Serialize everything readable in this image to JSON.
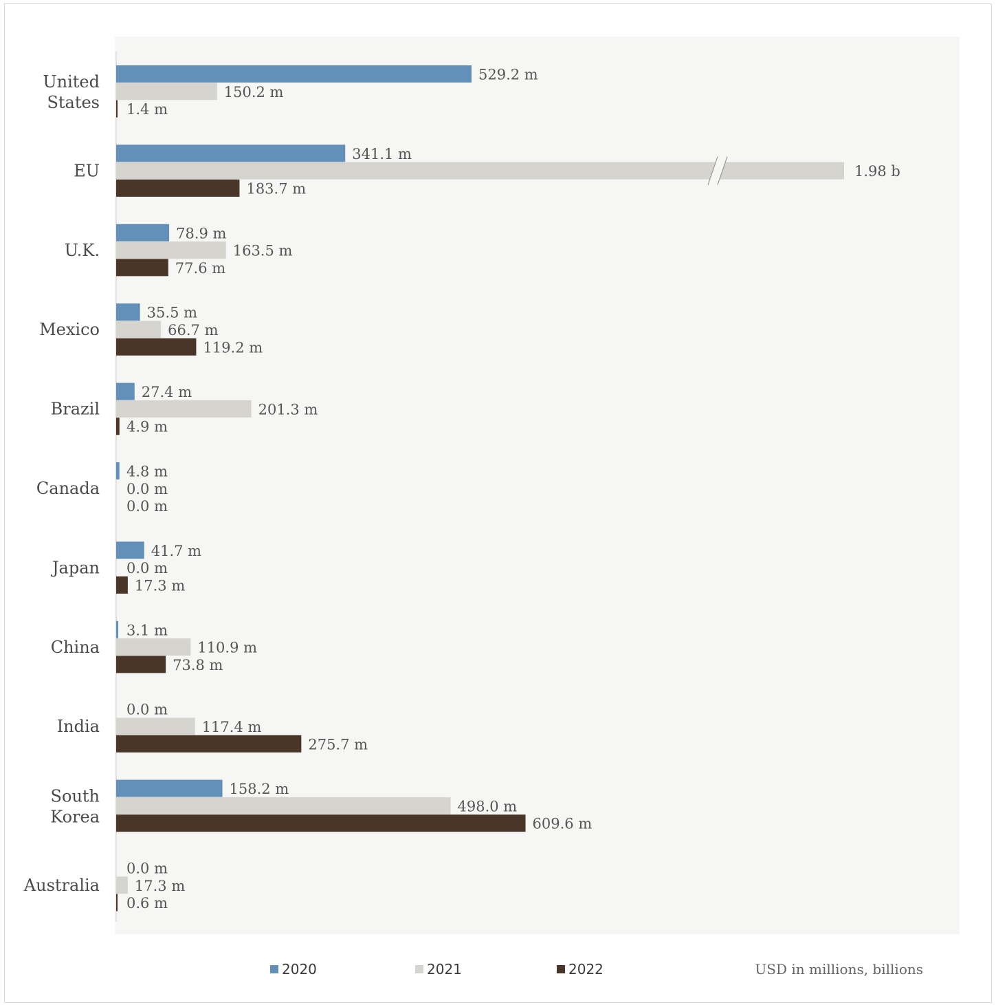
{
  "chart_data": {
    "type": "bar",
    "orientation": "horizontal",
    "categories": [
      "United States",
      "EU",
      "U.K.",
      "Mexico",
      "Brazil",
      "Canada",
      "Japan",
      "China",
      "India",
      "South Korea",
      "Australia"
    ],
    "category_lines": [
      [
        "United",
        "States"
      ],
      [
        "EU"
      ],
      [
        "U.K."
      ],
      [
        "Mexico"
      ],
      [
        "Brazil"
      ],
      [
        "Canada"
      ],
      [
        "Japan"
      ],
      [
        "China"
      ],
      [
        "India"
      ],
      [
        "South",
        "Korea"
      ],
      [
        "Australia"
      ]
    ],
    "series": [
      {
        "name": "2020",
        "color": "#6290b8",
        "values": [
          529.2,
          341.1,
          78.9,
          35.5,
          27.4,
          4.8,
          41.7,
          3.1,
          0.0,
          158.2,
          0.0
        ],
        "labels": [
          "529.2 m",
          "341.1 m",
          "78.9 m",
          "35.5 m",
          "27.4 m",
          "4.8 m",
          "41.7 m",
          "3.1 m",
          "0.0 m",
          "158.2 m",
          "0.0 m"
        ]
      },
      {
        "name": "2021",
        "color": "#d6d4cf",
        "values": [
          150.2,
          1980,
          163.5,
          66.7,
          201.3,
          0.0,
          0.0,
          110.9,
          117.4,
          498.0,
          17.3
        ],
        "labels": [
          "150.2 m",
          "1.98 b",
          "163.5 m",
          "66.7 m",
          "201.3 m",
          "0.0 m",
          "0.0 m",
          "110.9 m",
          "117.4 m",
          "498.0 m",
          "17.3 m"
        ]
      },
      {
        "name": "2022",
        "color": "#4a3628",
        "values": [
          1.4,
          183.7,
          77.6,
          119.2,
          4.9,
          0.0,
          17.3,
          73.8,
          275.7,
          609.6,
          0.6
        ],
        "labels": [
          "1.4 m",
          "183.7 m",
          "77.6 m",
          "119.2 m",
          "4.9 m",
          "0.0 m",
          "17.3 m",
          "73.8 m",
          "275.7 m",
          "609.6 m",
          "0.6 m"
        ]
      }
    ],
    "axis_break": {
      "series": "2021",
      "category": "EU"
    },
    "legend": [
      "2020",
      "2021",
      "2022"
    ],
    "legend_position": "bottom",
    "note": "USD in millions, billions",
    "grid": false
  }
}
